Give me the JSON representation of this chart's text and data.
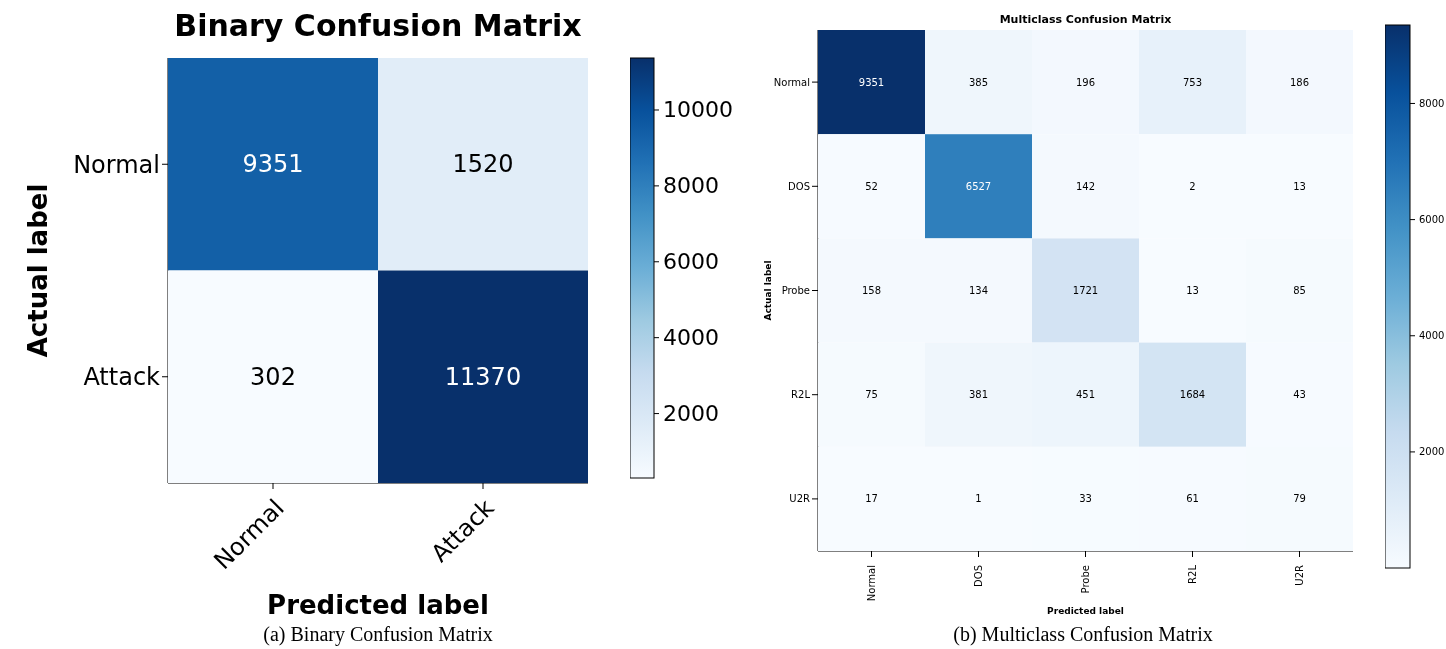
{
  "chart_data": [
    {
      "type": "heatmap",
      "title": "Binary Confusion Matrix",
      "xlabel": "Predicted label",
      "ylabel": "Actual label",
      "categories": [
        "Normal",
        "Attack"
      ],
      "y_categories": [
        "Normal",
        "Attack"
      ],
      "cells": [
        [
          9351,
          1520
        ],
        [
          302,
          11370
        ]
      ],
      "clim": [
        302,
        11370
      ],
      "cticks": [
        2000,
        4000,
        6000,
        8000,
        10000
      ],
      "data_labels": true,
      "annotations": [
        "(a) Binary Confusion Matrix"
      ]
    },
    {
      "type": "heatmap",
      "title": "Multiclass Confusion Matrix",
      "xlabel": "Predicted label",
      "ylabel": "Actual label",
      "categories": [
        "Normal",
        "DOS",
        "Probe",
        "R2L",
        "U2R"
      ],
      "y_categories": [
        "Normal",
        "DOS",
        "Probe",
        "R2L",
        "U2R"
      ],
      "cells": [
        [
          9351,
          385,
          196,
          753,
          186
        ],
        [
          52,
          6527,
          142,
          2,
          13
        ],
        [
          158,
          134,
          1721,
          13,
          85
        ],
        [
          75,
          381,
          451,
          1684,
          43
        ],
        [
          17,
          1,
          33,
          61,
          79
        ]
      ],
      "clim": [
        1,
        9351
      ],
      "cticks": [
        2000,
        4000,
        6000,
        8000
      ],
      "data_labels": true,
      "annotations": [
        "(b) Multiclass Confusion Matrix"
      ]
    }
  ]
}
